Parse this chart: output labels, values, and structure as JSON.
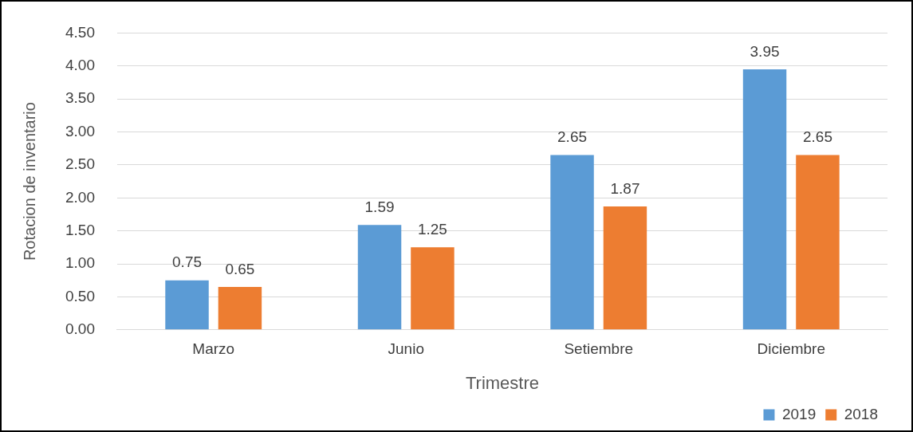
{
  "chart_data": {
    "type": "bar",
    "xlabel": "Trimestre",
    "ylabel": "Rotacion de inventario",
    "categories": [
      "Marzo",
      "Junio",
      "Setiembre",
      "Diciembre"
    ],
    "series": [
      {
        "name": "2019",
        "color": "#5b9bd5",
        "values": [
          0.75,
          1.59,
          2.65,
          3.95
        ]
      },
      {
        "name": "2018",
        "color": "#ed7d31",
        "values": [
          0.65,
          1.25,
          1.87,
          2.65
        ]
      }
    ],
    "ylim": [
      0,
      4.5
    ],
    "yticks": [
      {
        "value": 0,
        "label": "0.00"
      },
      {
        "value": 0.5,
        "label": "0.50"
      },
      {
        "value": 1,
        "label": "1.00"
      },
      {
        "value": 1.5,
        "label": "1.50"
      },
      {
        "value": 2,
        "label": "2.00"
      },
      {
        "value": 2.5,
        "label": "2.50"
      },
      {
        "value": 3,
        "label": "3.00"
      },
      {
        "value": 3.5,
        "label": "3.50"
      },
      {
        "value": 4,
        "label": "4.00"
      },
      {
        "value": 4.5,
        "label": "4.50"
      }
    ],
    "grid": "y",
    "legend": "bottom right",
    "data_labels": true
  }
}
